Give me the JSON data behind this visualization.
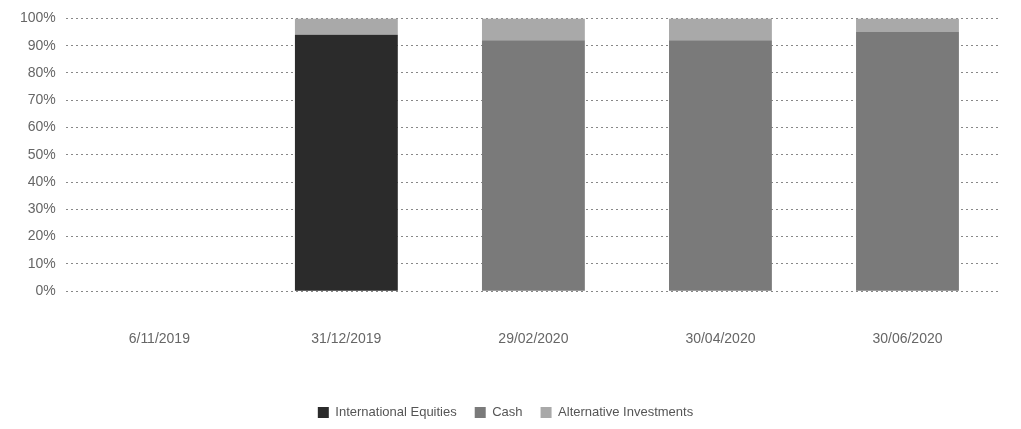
{
  "chart_data": {
    "type": "bar",
    "stacked": true,
    "categories": [
      "6/11/2019",
      "31/12/2019",
      "29/02/2020",
      "30/04/2020",
      "30/06/2020"
    ],
    "series": [
      {
        "name": "International Equities",
        "color": "#2b2b2b",
        "values": [
          null,
          94,
          null,
          null,
          null
        ]
      },
      {
        "name": "Cash",
        "color": "#7a7a7a",
        "values": [
          null,
          null,
          92,
          92,
          95
        ]
      },
      {
        "name": "Alternative Investments",
        "color": "#a9a9a9",
        "values": [
          null,
          6,
          8,
          8,
          5
        ]
      }
    ],
    "ylim": [
      0,
      100
    ],
    "yticks": [
      {
        "value": 0,
        "label": "0%"
      },
      {
        "value": 10,
        "label": "10%"
      },
      {
        "value": 20,
        "label": "20%"
      },
      {
        "value": 30,
        "label": "30%"
      },
      {
        "value": 40,
        "label": "40%"
      },
      {
        "value": 50,
        "label": "50%"
      },
      {
        "value": 60,
        "label": "60%"
      },
      {
        "value": 70,
        "label": "70%"
      },
      {
        "value": 80,
        "label": "80%"
      },
      {
        "value": 90,
        "label": "90%"
      },
      {
        "value": 100,
        "label": "100%"
      }
    ],
    "grid": "y",
    "legend": "bottom"
  }
}
